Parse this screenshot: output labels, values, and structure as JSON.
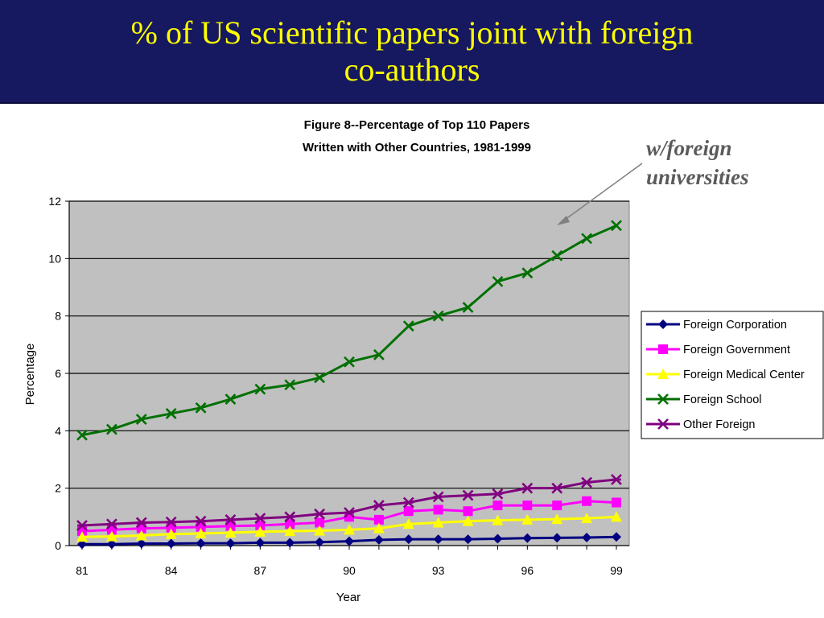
{
  "slide": {
    "title_line1": "% of US scientific papers joint with foreign",
    "title_line2": "co-authors",
    "annotation_line1": "w/foreign",
    "annotation_line2": "universities",
    "header_color": "#16195f",
    "title_color": "#ffff00"
  },
  "chart_data": {
    "type": "line",
    "title_line1": "Figure 8--Percentage of Top 110 Papers",
    "title_line2": "Written with Other Countries, 1981-1999",
    "xlabel": "Year",
    "ylabel": "Percentage",
    "x": [
      81,
      82,
      83,
      84,
      85,
      86,
      87,
      88,
      89,
      90,
      91,
      92,
      93,
      94,
      95,
      96,
      97,
      98,
      99
    ],
    "xticks": [
      "81",
      "84",
      "87",
      "90",
      "93",
      "96",
      "99"
    ],
    "yticks": [
      "0",
      "2",
      "4",
      "6",
      "8",
      "10",
      "12"
    ],
    "ylim": [
      0,
      12
    ],
    "xlim": [
      81,
      99
    ],
    "grid": true,
    "legend_position": "right",
    "plot_background": "#c0c0c0",
    "series": [
      {
        "name": "Foreign Corporation",
        "color": "#000080",
        "marker": "diamond",
        "values": [
          0.05,
          0.05,
          0.07,
          0.07,
          0.08,
          0.08,
          0.1,
          0.1,
          0.12,
          0.15,
          0.2,
          0.22,
          0.22,
          0.22,
          0.24,
          0.26,
          0.27,
          0.28,
          0.3
        ]
      },
      {
        "name": "Foreign Government",
        "color": "#ff00ff",
        "marker": "square",
        "values": [
          0.5,
          0.55,
          0.6,
          0.62,
          0.65,
          0.68,
          0.7,
          0.75,
          0.8,
          1.0,
          0.9,
          1.2,
          1.25,
          1.2,
          1.4,
          1.4,
          1.4,
          1.55,
          1.5
        ]
      },
      {
        "name": "Foreign Medical Center",
        "color": "#ffff00",
        "marker": "triangle",
        "values": [
          0.3,
          0.32,
          0.35,
          0.4,
          0.42,
          0.45,
          0.48,
          0.5,
          0.52,
          0.55,
          0.6,
          0.75,
          0.8,
          0.85,
          0.88,
          0.9,
          0.92,
          0.95,
          1.0
        ]
      },
      {
        "name": "Foreign School",
        "color": "#007000",
        "marker": "x",
        "values": [
          3.85,
          4.05,
          4.4,
          4.6,
          4.8,
          5.1,
          5.45,
          5.6,
          5.85,
          6.4,
          6.65,
          7.65,
          8.0,
          8.3,
          9.2,
          9.5,
          10.1,
          10.7,
          11.15
        ]
      },
      {
        "name": "Other Foreign",
        "color": "#800080",
        "marker": "star",
        "values": [
          0.7,
          0.75,
          0.8,
          0.82,
          0.85,
          0.9,
          0.95,
          1.0,
          1.1,
          1.15,
          1.4,
          1.5,
          1.7,
          1.75,
          1.8,
          2.0,
          2.0,
          2.2,
          2.3
        ]
      }
    ]
  }
}
